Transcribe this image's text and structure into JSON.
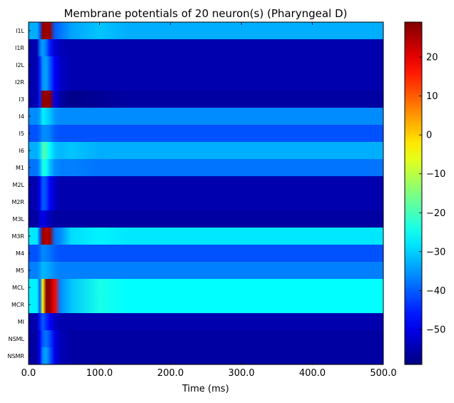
{
  "chart_data": {
    "type": "heatmap",
    "title": "Membrane potentials of 20 neuron(s) (Pharyngeal D)",
    "xlabel": "Time (ms)",
    "ylabel": "",
    "xlim": [
      0,
      500
    ],
    "x_ticks": [
      "0.0",
      "100.0",
      "200.0",
      "300.0",
      "400.0",
      "500.0"
    ],
    "x_tick_values": [
      0,
      100,
      200,
      300,
      400,
      500
    ],
    "neurons": [
      "I1L",
      "I1R",
      "I2L",
      "I2R",
      "I3",
      "I4",
      "I5",
      "I6",
      "M1",
      "M2L",
      "M2R",
      "M3L",
      "M3R",
      "M4",
      "M5",
      "MCL",
      "MCR",
      "MI",
      "NSML",
      "NSMR"
    ],
    "colormap": "jet",
    "colorbar": {
      "min": -59,
      "max": 29,
      "ticks": [
        20,
        10,
        0,
        -10,
        -20,
        -30,
        -40,
        -50
      ],
      "tick_labels": [
        "20",
        "10",
        "0",
        "−10",
        "−20",
        "−30",
        "−40",
        "−50"
      ]
    },
    "time_points_ms": [
      0,
      12,
      16,
      20,
      25,
      30,
      37,
      45,
      60,
      100,
      140,
      500
    ],
    "values_mV": [
      [
        -33,
        -33,
        -40,
        28,
        26,
        27,
        -40,
        -38,
        -34,
        -31,
        -33,
        -33
      ],
      [
        -55,
        -55,
        -38,
        -34,
        -38,
        -46,
        -52,
        -54,
        -55,
        -55,
        -55,
        -55
      ],
      [
        -55,
        -55,
        -45,
        -35,
        -34,
        -40,
        -48,
        -53,
        -55,
        -55,
        -55,
        -55
      ],
      [
        -55,
        -55,
        -45,
        -35,
        -34,
        -40,
        -48,
        -53,
        -55,
        -55,
        -55,
        -55
      ],
      [
        -55,
        -55,
        -45,
        28,
        27,
        28,
        -50,
        -56,
        -58,
        -57,
        -56,
        -56
      ],
      [
        -36,
        -36,
        -34,
        -27,
        -29,
        -31,
        -35,
        -36,
        -36,
        -36,
        -36,
        -36
      ],
      [
        -41,
        -41,
        -39,
        -36,
        -36,
        -37,
        -40,
        -41,
        -41,
        -41,
        -41,
        -41
      ],
      [
        -33,
        -33,
        -30,
        -20,
        -21,
        -26,
        -31,
        -32,
        -31,
        -33,
        -33,
        -33
      ],
      [
        -38,
        -38,
        -34,
        -24,
        -25,
        -31,
        -36,
        -37,
        -37,
        -38,
        -38,
        -38
      ],
      [
        -55,
        -55,
        -48,
        -40,
        -42,
        -48,
        -53,
        -55,
        -55,
        -55,
        -55,
        -55
      ],
      [
        -55,
        -55,
        -48,
        -40,
        -42,
        -48,
        -53,
        -55,
        -55,
        -55,
        -55,
        -55
      ],
      [
        -56,
        -56,
        -52,
        -50,
        -52,
        -54,
        -56,
        -56,
        -56,
        -56,
        -56,
        -56
      ],
      [
        -28,
        -28,
        -40,
        27,
        24,
        26,
        -38,
        -36,
        -29,
        -27,
        -28,
        -28
      ],
      [
        -41,
        -41,
        -39,
        -36,
        -37,
        -38,
        -40,
        -41,
        -41,
        -41,
        -41,
        -41
      ],
      [
        -37,
        -37,
        -35,
        -32,
        -33,
        -34,
        -36,
        -37,
        -37,
        -37,
        -37,
        -37
      ],
      [
        -27,
        -27,
        -40,
        -5,
        28,
        27,
        18,
        -36,
        -31,
        -24,
        -26,
        -26
      ],
      [
        -27,
        -27,
        -40,
        -5,
        28,
        27,
        18,
        -36,
        -31,
        -24,
        -26,
        -26
      ],
      [
        -55,
        -55,
        -46,
        -40,
        -44,
        -48,
        -53,
        -55,
        -55,
        -55,
        -55,
        -55
      ],
      [
        -56,
        -56,
        -48,
        -40,
        -38,
        -42,
        -50,
        -54,
        -56,
        -56,
        -56,
        -56
      ],
      [
        -56,
        -56,
        -48,
        -36,
        -34,
        -40,
        -50,
        -54,
        -56,
        -56,
        -56,
        -56
      ]
    ]
  }
}
